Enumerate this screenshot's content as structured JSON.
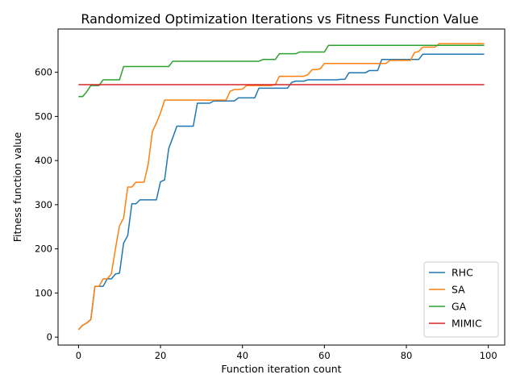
{
  "chart_data": {
    "type": "line",
    "title": "Randomized Optimization Iterations vs Fitness Function Value",
    "xlabel": "Function iteration count",
    "ylabel": "Fitness function value",
    "xlim": [
      -5,
      104
    ],
    "ylim": [
      -18,
      698
    ],
    "xticks": [
      0,
      20,
      40,
      60,
      80,
      100
    ],
    "yticks": [
      0,
      100,
      200,
      300,
      400,
      500,
      600
    ],
    "grid": false,
    "legend_position": "lower right",
    "series": [
      {
        "name": "RHC",
        "color": "#1f77b4",
        "x": [
          0,
          1,
          2,
          3,
          4,
          5,
          6,
          7,
          8,
          9,
          10,
          11,
          12,
          13,
          14,
          15,
          16,
          17,
          18,
          19,
          20,
          21,
          22,
          23,
          24,
          25,
          26,
          27,
          28,
          29,
          30,
          31,
          32,
          33,
          34,
          35,
          36,
          37,
          38,
          39,
          40,
          41,
          42,
          43,
          44,
          45,
          46,
          47,
          48,
          49,
          50,
          51,
          52,
          53,
          54,
          55,
          56,
          57,
          58,
          59,
          60,
          61,
          62,
          63,
          64,
          65,
          66,
          67,
          68,
          69,
          70,
          71,
          72,
          73,
          74,
          75,
          76,
          77,
          78,
          79,
          80,
          81,
          82,
          83,
          84,
          85,
          86,
          87,
          88,
          89,
          90,
          91,
          92,
          93,
          94,
          95,
          96,
          97,
          98,
          99
        ],
        "y": [
          17,
          27,
          32,
          40,
          115,
          115,
          115,
          132,
          132,
          143,
          145,
          213,
          230,
          302,
          302,
          311,
          311,
          311,
          311,
          311,
          352,
          356,
          427,
          452,
          478,
          478,
          478,
          478,
          478,
          530,
          530,
          530,
          530,
          535,
          535,
          535,
          535,
          535,
          535,
          542,
          542,
          542,
          542,
          542,
          564,
          564,
          564,
          564,
          564,
          564,
          564,
          564,
          577,
          580,
          580,
          580,
          583,
          583,
          583,
          583,
          583,
          583,
          583,
          583,
          584,
          584,
          599,
          599,
          599,
          599,
          599,
          604,
          604,
          604,
          629,
          629,
          629,
          629,
          629,
          629,
          629,
          629,
          629,
          629,
          641,
          641,
          641,
          641,
          641,
          641,
          641,
          641,
          641,
          641,
          641,
          641,
          641,
          641,
          641,
          641
        ]
      },
      {
        "name": "SA",
        "color": "#ff7f0e",
        "x": [
          0,
          1,
          2,
          3,
          4,
          5,
          6,
          7,
          8,
          9,
          10,
          11,
          12,
          13,
          14,
          15,
          16,
          17,
          18,
          19,
          20,
          21,
          22,
          23,
          24,
          25,
          26,
          27,
          28,
          29,
          30,
          31,
          32,
          33,
          34,
          35,
          36,
          37,
          38,
          39,
          40,
          41,
          42,
          43,
          44,
          45,
          46,
          47,
          48,
          49,
          50,
          51,
          52,
          53,
          54,
          55,
          56,
          57,
          58,
          59,
          60,
          61,
          62,
          63,
          64,
          65,
          66,
          67,
          68,
          69,
          70,
          71,
          72,
          73,
          74,
          75,
          76,
          77,
          78,
          79,
          80,
          81,
          82,
          83,
          84,
          85,
          86,
          87,
          88,
          89,
          90,
          91,
          92,
          93,
          94,
          95,
          96,
          97,
          98,
          99
        ],
        "y": [
          17,
          27,
          32,
          40,
          115,
          115,
          132,
          132,
          143,
          200,
          252,
          270,
          340,
          340,
          351,
          351,
          351,
          392,
          465,
          485,
          508,
          537,
          537,
          537,
          537,
          537,
          537,
          537,
          537,
          537,
          537,
          537,
          537,
          537,
          537,
          537,
          537,
          557,
          561,
          561,
          562,
          570,
          570,
          570,
          570,
          570,
          570,
          570,
          572,
          591,
          591,
          591,
          591,
          591,
          591,
          591,
          595,
          606,
          606,
          608,
          620,
          620,
          620,
          620,
          620,
          620,
          620,
          620,
          620,
          620,
          620,
          620,
          620,
          620,
          620,
          620,
          627,
          627,
          627,
          627,
          627,
          627,
          645,
          647,
          657,
          657,
          657,
          657,
          665,
          665,
          665,
          665,
          665,
          665,
          665,
          665,
          665,
          665,
          665,
          665
        ]
      },
      {
        "name": "GA",
        "color": "#2ca02c",
        "x": [
          0,
          1,
          2,
          3,
          4,
          5,
          6,
          7,
          8,
          9,
          10,
          11,
          12,
          13,
          14,
          15,
          16,
          17,
          18,
          19,
          20,
          21,
          22,
          23,
          24,
          25,
          26,
          27,
          28,
          29,
          30,
          31,
          32,
          33,
          34,
          35,
          36,
          37,
          38,
          39,
          40,
          41,
          42,
          43,
          44,
          45,
          46,
          47,
          48,
          49,
          50,
          51,
          52,
          53,
          54,
          55,
          56,
          57,
          58,
          59,
          60,
          61,
          62,
          63,
          64,
          65,
          66,
          67,
          68,
          69,
          70,
          71,
          72,
          73,
          74,
          75,
          76,
          77,
          78,
          79,
          80,
          81,
          82,
          83,
          84,
          85,
          86,
          87,
          88,
          89,
          90,
          91,
          92,
          93,
          94,
          95,
          96,
          97,
          98,
          99
        ],
        "y": [
          545,
          545,
          556,
          570,
          570,
          570,
          583,
          583,
          583,
          583,
          583,
          613,
          613,
          613,
          613,
          613,
          613,
          613,
          613,
          613,
          613,
          613,
          613,
          625,
          625,
          625,
          625,
          625,
          625,
          625,
          625,
          625,
          625,
          625,
          625,
          625,
          625,
          625,
          625,
          625,
          625,
          625,
          625,
          625,
          625,
          629,
          629,
          629,
          629,
          642,
          642,
          642,
          642,
          642,
          646,
          646,
          646,
          646,
          646,
          646,
          646,
          661,
          661,
          661,
          661,
          661,
          661,
          661,
          661,
          661,
          661,
          661,
          661,
          661,
          661,
          661,
          661,
          661,
          661,
          661,
          661,
          661,
          661,
          661,
          661,
          661,
          661,
          661,
          661,
          661,
          661,
          661,
          661,
          661,
          661,
          661,
          661,
          661,
          661,
          661
        ]
      },
      {
        "name": "MIMIC",
        "color": "#d62728",
        "x": [
          0,
          99
        ],
        "y": [
          572,
          572
        ]
      }
    ]
  }
}
